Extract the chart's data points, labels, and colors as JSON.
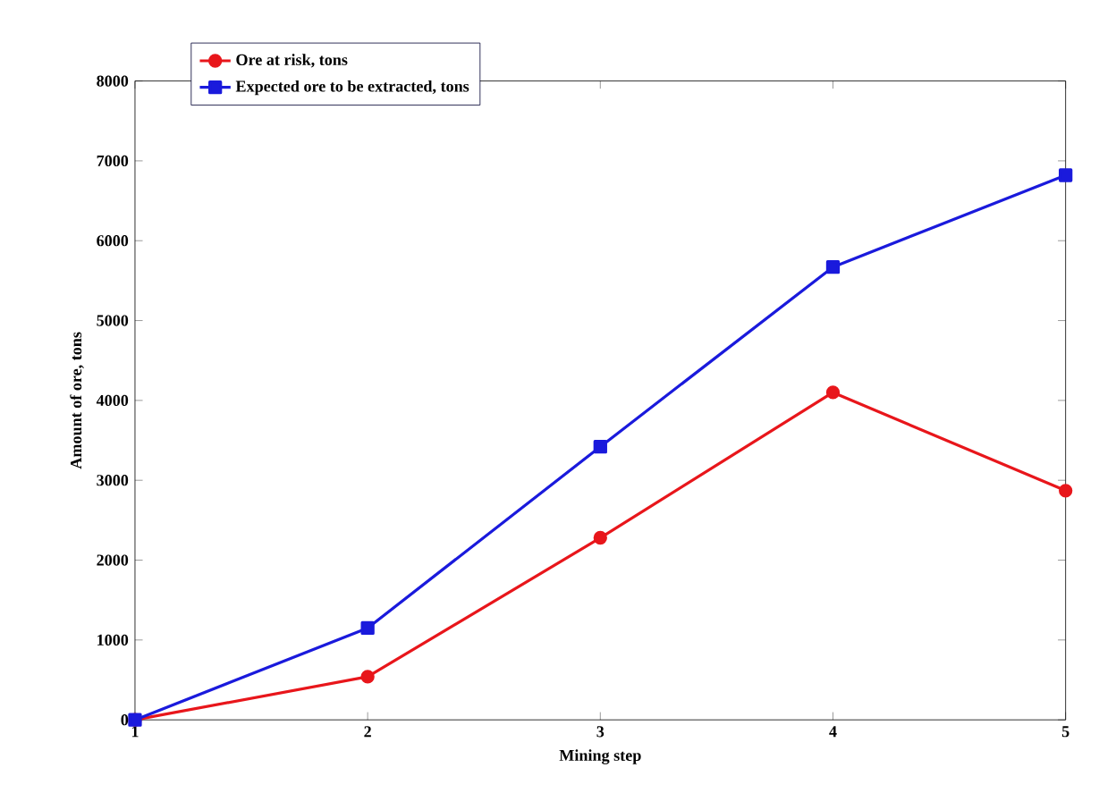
{
  "chart_data": {
    "type": "line",
    "xlabel": "Mining step",
    "ylabel": "Amount of ore, tons",
    "x": [
      1,
      2,
      3,
      4,
      5
    ],
    "xlim": [
      1,
      5
    ],
    "xticks": [
      1,
      2,
      3,
      4,
      5
    ],
    "ylim": [
      0,
      8000
    ],
    "yticks": [
      0,
      1000,
      2000,
      3000,
      4000,
      5000,
      6000,
      7000,
      8000
    ],
    "grid": false,
    "legend": "top",
    "series": [
      {
        "name": "Ore at risk, tons",
        "color": "#e8161b",
        "marker": "circle",
        "values": [
          0,
          540,
          2280,
          4100,
          2870
        ]
      },
      {
        "name": "Expected ore to be extracted, tons",
        "color": "#1a1adc",
        "marker": "square",
        "values": [
          0,
          1150,
          3420,
          5670,
          6820
        ]
      }
    ]
  }
}
